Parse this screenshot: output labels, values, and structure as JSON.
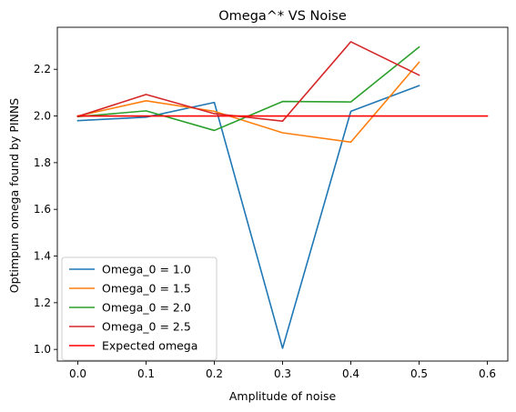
{
  "chart_data": {
    "type": "line",
    "title": "Omega^* VS Noise",
    "xlabel": "Amplitude of noise",
    "ylabel": "Optimpum omega found by PINNS",
    "xlim": [
      -0.03,
      0.63
    ],
    "ylim": [
      0.95,
      2.38
    ],
    "xticks": [
      0.0,
      0.1,
      0.2,
      0.3,
      0.4,
      0.5,
      0.6
    ],
    "xtick_labels": [
      "0.0",
      "0.1",
      "0.2",
      "0.3",
      "0.4",
      "0.5",
      "0.6"
    ],
    "yticks": [
      1.0,
      1.2,
      1.4,
      1.6,
      1.8,
      2.0,
      2.2
    ],
    "ytick_labels": [
      "1.0",
      "1.2",
      "1.4",
      "1.6",
      "1.8",
      "2.0",
      "2.2"
    ],
    "grid": false,
    "legend_position": "bottom-left",
    "series": [
      {
        "name": "Omega_0 = 1.0",
        "color": "#1f77b4",
        "x": [
          0.0,
          0.1,
          0.2,
          0.3,
          0.4,
          0.5
        ],
        "y": [
          1.98,
          1.995,
          2.058,
          1.005,
          2.02,
          2.13
        ]
      },
      {
        "name": "Omega_0 = 1.5",
        "color": "#ff7f0e",
        "x": [
          0.0,
          0.1,
          0.2,
          0.3,
          0.4,
          0.5
        ],
        "y": [
          2.0,
          2.065,
          2.02,
          1.928,
          1.888,
          2.23
        ]
      },
      {
        "name": "Omega_0 = 2.0",
        "color": "#2ca02c",
        "x": [
          0.0,
          0.1,
          0.2,
          0.3,
          0.4,
          0.5
        ],
        "y": [
          1.997,
          2.022,
          1.938,
          2.062,
          2.06,
          2.295
        ]
      },
      {
        "name": "Omega_0 = 2.5",
        "color": "#d62728",
        "x": [
          0.0,
          0.1,
          0.2,
          0.3,
          0.4,
          0.5
        ],
        "y": [
          1.998,
          2.092,
          2.01,
          1.978,
          2.318,
          2.175
        ]
      },
      {
        "name": "Expected omega",
        "color": "#ff0000",
        "x": [
          0.0,
          0.6
        ],
        "y": [
          2.0,
          2.0
        ]
      }
    ]
  }
}
